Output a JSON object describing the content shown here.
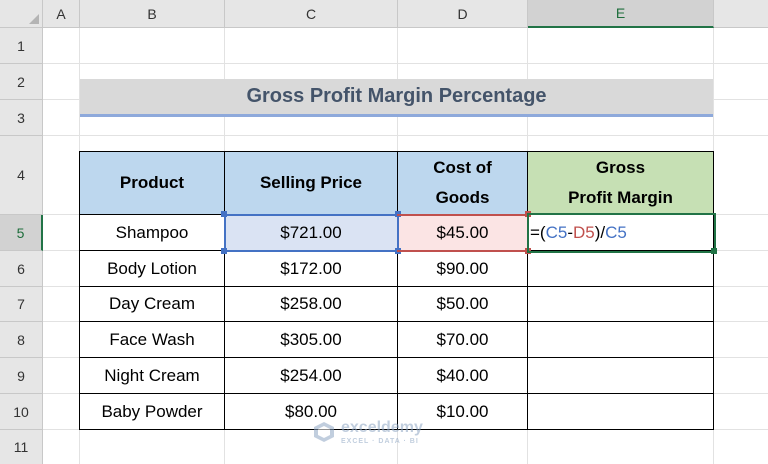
{
  "columns": [
    "A",
    "B",
    "C",
    "D",
    "E"
  ],
  "rows": [
    "1",
    "2",
    "3",
    "4",
    "5",
    "6",
    "7",
    "8",
    "9",
    "10",
    "11"
  ],
  "title": "Gross Profit Margin Percentage",
  "headers": {
    "product": "Product",
    "selling_price": "Selling Price",
    "cost_of_goods_line1": "Cost of",
    "cost_of_goods_line2": "Goods",
    "gross_margin_line1": "Gross",
    "gross_margin_line2": "Profit Margin"
  },
  "table": [
    {
      "product": "Shampoo",
      "selling_price": "$721.00",
      "cost": "$45.00"
    },
    {
      "product": "Body Lotion",
      "selling_price": "$172.00",
      "cost": "$90.00"
    },
    {
      "product": "Day Cream",
      "selling_price": "$258.00",
      "cost": "$50.00"
    },
    {
      "product": "Face Wash",
      "selling_price": "$305.00",
      "cost": "$70.00"
    },
    {
      "product": "Night Cream",
      "selling_price": "$254.00",
      "cost": "$40.00"
    },
    {
      "product": "Baby Powder",
      "selling_price": "$80.00",
      "cost": "$10.00"
    }
  ],
  "formula": {
    "open": "=(",
    "ref1": "C5",
    "minus": "-",
    "ref2": "D5",
    "close": ")/",
    "ref3": "C5"
  },
  "watermark": {
    "name": "exceldemy",
    "tagline": "EXCEL · DATA · BI"
  },
  "colors": {
    "header_blue": "#bdd7ee",
    "header_green": "#c6e0b4",
    "ref_blue": "#4472c4",
    "ref_red": "#c0504d",
    "active_green": "#217346"
  }
}
